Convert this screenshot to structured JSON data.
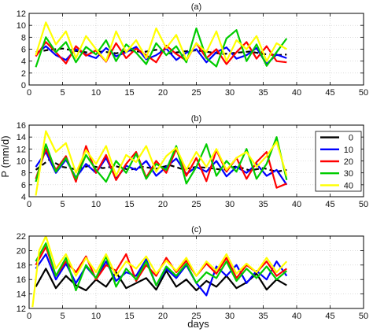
{
  "chart_data": [
    {
      "type": "line",
      "title": "(a)",
      "xlabel": "",
      "ylabel": "",
      "xlim": [
        0,
        50
      ],
      "ylim": [
        0,
        12
      ],
      "xticks": [
        0,
        5,
        10,
        15,
        20,
        25,
        30,
        35,
        40,
        45,
        50
      ],
      "yticks": [
        0,
        2,
        4,
        6,
        8,
        10,
        12
      ],
      "grid": true,
      "series": [
        {
          "name": "0",
          "color": "#000000",
          "dashed": true,
          "x": [
            1,
            3,
            5,
            7,
            9,
            11,
            13,
            15,
            17,
            19,
            21,
            23,
            25,
            27,
            29,
            31,
            33,
            35,
            37,
            38.5
          ],
          "y": [
            5.5,
            5.9,
            6.1,
            5.7,
            5.4,
            5.6,
            5.3,
            5.8,
            5.5,
            5.9,
            5.3,
            5.6,
            5.8,
            5.5,
            5.2,
            5.4,
            5.6,
            5.2,
            5.0,
            5.1
          ]
        },
        {
          "name": "10",
          "color": "#0000ff",
          "dashed": false,
          "x": [
            1,
            2.5,
            4,
            5.5,
            7,
            8.5,
            10,
            11.5,
            13,
            14.5,
            16,
            17.5,
            19,
            20.5,
            22,
            23.5,
            25,
            26.5,
            28,
            29.5,
            31,
            32.5,
            34,
            35.5,
            37,
            38.5
          ],
          "y": [
            5.2,
            6.5,
            5.0,
            4.2,
            6.0,
            5.1,
            4.5,
            6.2,
            4.8,
            5.5,
            6.4,
            4.3,
            5.0,
            6.1,
            4.2,
            5.4,
            6.0,
            3.8,
            5.5,
            6.3,
            4.4,
            5.0,
            6.2,
            3.5,
            5.1,
            4.5
          ]
        },
        {
          "name": "20",
          "color": "#ff0000",
          "dashed": false,
          "x": [
            1,
            2.5,
            4,
            5.5,
            7,
            8.5,
            10,
            11.5,
            13,
            14.5,
            16,
            17.5,
            19,
            20.5,
            22,
            23.5,
            25,
            26.5,
            28,
            29.5,
            31,
            32.5,
            34,
            35.5,
            37,
            38.5
          ],
          "y": [
            4.8,
            7.2,
            5.5,
            3.6,
            6.5,
            4.9,
            5.8,
            3.9,
            7.0,
            4.5,
            6.1,
            5.0,
            3.8,
            6.6,
            5.2,
            4.1,
            7.0,
            4.5,
            6.0,
            3.5,
            5.5,
            7.2,
            4.4,
            6.5,
            4.0,
            3.8
          ]
        },
        {
          "name": "30",
          "color": "#00cc00",
          "dashed": false,
          "x": [
            1,
            2.5,
            4,
            5.5,
            7,
            8.5,
            10,
            11.5,
            13,
            14.5,
            16,
            17.5,
            19,
            20.5,
            22,
            23.5,
            25,
            26.5,
            28,
            29.5,
            31,
            32.5,
            34,
            35.5,
            37,
            38.5
          ],
          "y": [
            3.0,
            8.0,
            5.5,
            7.2,
            3.8,
            6.4,
            5.1,
            7.5,
            4.0,
            6.8,
            5.4,
            3.5,
            7.0,
            5.0,
            6.5,
            3.8,
            9.5,
            4.5,
            3.1,
            7.8,
            9.2,
            4.0,
            6.8,
            3.2,
            5.5,
            7.8
          ]
        },
        {
          "name": "40",
          "color": "#ffff00",
          "dashed": false,
          "x": [
            1,
            2.5,
            4,
            5.5,
            7,
            8.5,
            10,
            11.5,
            13,
            14.5,
            16,
            17.5,
            19,
            20.5,
            22,
            23.5,
            25,
            26.5,
            28,
            29.5,
            31,
            32.5,
            34,
            35.5,
            37,
            38.5
          ],
          "y": [
            5.0,
            10.5,
            6.8,
            9.0,
            4.5,
            8.2,
            6.0,
            4.0,
            9.0,
            5.5,
            7.5,
            4.5,
            9.5,
            6.2,
            8.4,
            4.2,
            7.0,
            5.5,
            9.0,
            4.0,
            7.5,
            6.0,
            8.2,
            4.0,
            7.0,
            6.0
          ]
        }
      ]
    },
    {
      "type": "line",
      "title": "(b)",
      "xlabel": "",
      "ylabel": "P (mm/d)",
      "xlim": [
        0,
        50
      ],
      "ylim": [
        4,
        16
      ],
      "xticks": [
        0,
        5,
        10,
        15,
        20,
        25,
        30,
        35,
        40,
        45,
        50
      ],
      "yticks": [
        4,
        6,
        8,
        10,
        12,
        14,
        16
      ],
      "grid": true,
      "legend": "top-right",
      "series": [
        {
          "name": "0",
          "color": "#000000",
          "dashed": true,
          "x": [
            1,
            3,
            5,
            7,
            9,
            11,
            13,
            15,
            17,
            19,
            21,
            23,
            25,
            27,
            29,
            31,
            33,
            35,
            37,
            38.5
          ],
          "y": [
            8.5,
            10.2,
            9.0,
            8.6,
            9.2,
            8.8,
            9.1,
            8.5,
            9.0,
            8.7,
            9.3,
            8.6,
            9.0,
            8.8,
            8.5,
            9.1,
            8.4,
            8.8,
            8.2,
            8.5
          ]
        },
        {
          "name": "10",
          "color": "#0000ff",
          "dashed": false,
          "x": [
            1,
            2.5,
            4,
            5.5,
            7,
            8.5,
            10,
            11.5,
            13,
            14.5,
            16,
            17.5,
            19,
            20.5,
            22,
            23.5,
            25,
            26.5,
            28,
            29.5,
            31,
            32.5,
            34,
            35.5,
            37,
            38.5
          ],
          "y": [
            9.0,
            11.5,
            8.0,
            10.2,
            7.2,
            9.5,
            8.0,
            10.5,
            7.0,
            9.2,
            8.5,
            10.0,
            7.5,
            9.0,
            10.4,
            7.8,
            9.0,
            8.2,
            10.0,
            7.4,
            9.0,
            8.0,
            9.5,
            7.5,
            8.5,
            6.0
          ]
        },
        {
          "name": "20",
          "color": "#ff0000",
          "dashed": false,
          "x": [
            1,
            2.5,
            4,
            5.5,
            7,
            8.5,
            10,
            11.5,
            13,
            14.5,
            16,
            17.5,
            19,
            20.5,
            22,
            23.5,
            25,
            26.5,
            28,
            29.5,
            31,
            32.5,
            34,
            35.5,
            37,
            38.5
          ],
          "y": [
            7.0,
            12.0,
            8.5,
            10.8,
            6.5,
            12.5,
            8.0,
            11.0,
            6.8,
            9.5,
            11.5,
            7.2,
            10.0,
            8.0,
            12.0,
            7.5,
            10.5,
            6.6,
            11.8,
            8.2,
            10.5,
            7.0,
            9.8,
            11.5,
            5.5,
            6.2
          ]
        },
        {
          "name": "30",
          "color": "#00cc00",
          "dashed": false,
          "x": [
            1,
            2.5,
            4,
            5.5,
            7,
            8.5,
            10,
            11.5,
            13,
            14.5,
            16,
            17.5,
            19,
            20.5,
            22,
            23.5,
            25,
            26.5,
            28,
            29.5,
            31,
            32.5,
            34,
            35.5,
            37,
            38.5
          ],
          "y": [
            6.5,
            12.8,
            8.2,
            10.5,
            7.0,
            11.0,
            8.5,
            6.5,
            10.0,
            8.0,
            11.2,
            7.0,
            9.5,
            8.5,
            12.5,
            6.2,
            9.0,
            12.8,
            7.5,
            10.0,
            8.2,
            12.0,
            7.0,
            9.5,
            14.0,
            6.8
          ]
        },
        {
          "name": "40",
          "color": "#ffff00",
          "dashed": false,
          "x": [
            1,
            2.5,
            4,
            5.5,
            7,
            8.5,
            10,
            11.5,
            13,
            14.5,
            16,
            17.5,
            19,
            20.5,
            22,
            23.5,
            25,
            26.5,
            28,
            29.5,
            31,
            32.5,
            34,
            35.5,
            37,
            38.5
          ],
          "y": [
            4.2,
            15.0,
            11.5,
            13.0,
            8.0,
            11.8,
            9.5,
            12.5,
            7.5,
            11.0,
            9.8,
            12.5,
            8.2,
            10.8,
            12.2,
            8.5,
            11.5,
            9.0,
            12.0,
            8.5,
            10.5,
            11.5,
            9.0,
            10.8,
            13.2,
            7.5
          ]
        }
      ]
    },
    {
      "type": "line",
      "title": "(c)",
      "xlabel": "days",
      "ylabel": "",
      "xlim": [
        0,
        50
      ],
      "ylim": [
        12,
        22
      ],
      "xticks": [
        0,
        5,
        10,
        15,
        20,
        25,
        30,
        35,
        40,
        45,
        50
      ],
      "yticks": [
        12,
        14,
        16,
        18,
        20,
        22
      ],
      "grid": true,
      "series": [
        {
          "name": "0",
          "color": "#000000",
          "dashed": false,
          "x": [
            1,
            2.5,
            4,
            5.5,
            7,
            8.5,
            10,
            11.5,
            13,
            14.5,
            16,
            17.5,
            19,
            20.5,
            22,
            23.5,
            25,
            26.5,
            28,
            29.5,
            31,
            32.5,
            34,
            35.5,
            37,
            38.5
          ],
          "y": [
            15.0,
            17.5,
            14.8,
            16.5,
            15.2,
            14.5,
            16.0,
            15.0,
            17.0,
            14.8,
            15.5,
            16.2,
            14.6,
            17.2,
            15.0,
            16.0,
            14.5,
            15.8,
            15.0,
            16.5,
            14.8,
            15.6,
            16.8,
            14.6,
            16.0,
            15.2
          ]
        },
        {
          "name": "10",
          "color": "#0000ff",
          "dashed": false,
          "x": [
            1,
            2.5,
            4,
            5.5,
            7,
            8.5,
            10,
            11.5,
            13,
            14.5,
            16,
            17.5,
            19,
            20.5,
            22,
            23.5,
            25,
            26.5,
            28,
            29.5,
            31,
            32.5,
            34,
            35.5,
            37,
            38.5
          ],
          "y": [
            17.5,
            19.5,
            16.0,
            18.2,
            15.5,
            17.8,
            16.2,
            18.5,
            15.8,
            17.0,
            16.5,
            18.8,
            15.2,
            17.5,
            16.2,
            18.0,
            15.5,
            13.8,
            17.8,
            16.5,
            18.0,
            15.5,
            17.2,
            16.0,
            18.5,
            16.5
          ]
        },
        {
          "name": "20",
          "color": "#ff0000",
          "dashed": false,
          "x": [
            1,
            2.5,
            4,
            5.5,
            7,
            8.5,
            10,
            11.5,
            13,
            14.5,
            16,
            17.5,
            19,
            20.5,
            22,
            23.5,
            25,
            26.5,
            28,
            29.5,
            31,
            32.5,
            34,
            35.5,
            37,
            38.5
          ],
          "y": [
            18.0,
            20.5,
            16.5,
            18.5,
            17.0,
            19.2,
            16.0,
            18.0,
            17.2,
            19.5,
            15.8,
            18.0,
            16.5,
            19.0,
            17.0,
            18.6,
            16.5,
            18.2,
            16.8,
            19.0,
            16.2,
            18.0,
            17.0,
            18.5,
            16.5,
            17.5
          ]
        },
        {
          "name": "30",
          "color": "#00cc00",
          "dashed": false,
          "x": [
            1,
            2.5,
            4,
            5.5,
            7,
            8.5,
            10,
            11.5,
            13,
            14.5,
            16,
            17.5,
            19,
            20.5,
            22,
            23.5,
            25,
            26.5,
            28,
            29.5,
            31,
            32.5,
            34,
            35.5,
            37,
            38.5
          ],
          "y": [
            18.5,
            21.0,
            16.5,
            19.0,
            14.5,
            18.0,
            16.2,
            19.2,
            15.0,
            17.5,
            16.0,
            18.5,
            15.2,
            17.8,
            16.5,
            18.2,
            15.5,
            17.0,
            16.2,
            18.5,
            15.8,
            17.5,
            16.2,
            17.8,
            16.0,
            17.2
          ]
        },
        {
          "name": "40",
          "color": "#ffff00",
          "dashed": false,
          "x": [
            0.5,
            1.5,
            2.5,
            4,
            5.5,
            7,
            8.5,
            10,
            11.5,
            13,
            14.5,
            16,
            17.5,
            19,
            20.5,
            22,
            23.5,
            25,
            26.5,
            28,
            29.5,
            31,
            32.5,
            34,
            35.5,
            37,
            38.5
          ],
          "y": [
            12.2,
            20.0,
            22.0,
            17.5,
            19.5,
            16.5,
            19.0,
            17.0,
            19.5,
            16.5,
            18.5,
            17.5,
            19.2,
            16.8,
            18.6,
            17.2,
            19.0,
            16.5,
            18.5,
            17.2,
            19.5,
            16.8,
            18.2,
            17.0,
            19.0,
            17.0,
            18.5
          ]
        }
      ]
    }
  ]
}
